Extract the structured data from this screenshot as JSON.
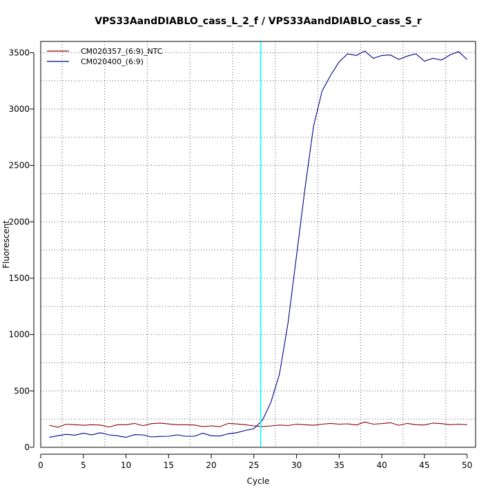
{
  "chart_data": {
    "type": "line",
    "title": "VPS33AandDIABLO_cass_L_2_f / VPS33AandDIABLO_cass_S_r",
    "xlabel": "Cycle",
    "ylabel": "Fluorescent",
    "xlim": [
      0,
      51
    ],
    "ylim": [
      0,
      3600
    ],
    "x_ticks": [
      0,
      5,
      10,
      15,
      20,
      25,
      30,
      35,
      40,
      45,
      50
    ],
    "y_ticks": [
      0,
      500,
      1000,
      1500,
      2000,
      2500,
      3000,
      3500
    ],
    "grid": true,
    "legend_position": "top-left",
    "threshold_cycle": 25.8,
    "threshold_color": "#00ffff",
    "baseline_color": "#8b0000",
    "x": [
      1,
      2,
      3,
      4,
      5,
      6,
      7,
      8,
      9,
      10,
      11,
      12,
      13,
      14,
      15,
      16,
      17,
      18,
      19,
      20,
      21,
      22,
      23,
      24,
      25,
      26,
      27,
      28,
      29,
      30,
      31,
      32,
      33,
      34,
      35,
      36,
      37,
      38,
      39,
      40,
      41,
      42,
      43,
      44,
      45,
      46,
      47,
      48,
      49,
      50
    ],
    "series": [
      {
        "name": "CM020357_(6:9)_NTC",
        "color": "#8b0000",
        "values": [
          195,
          178,
          205,
          200,
          195,
          200,
          197,
          180,
          200,
          200,
          212,
          192,
          210,
          215,
          207,
          200,
          200,
          198,
          183,
          190,
          183,
          212,
          207,
          200,
          190,
          183,
          190,
          197,
          193,
          205,
          200,
          195,
          205,
          212,
          205,
          208,
          198,
          225,
          205,
          210,
          218,
          195,
          212,
          200,
          198,
          215,
          210,
          200,
          205,
          200
        ]
      },
      {
        "name": "CM020400_(6:9)",
        "color": "#00008b",
        "values": [
          88,
          102,
          115,
          108,
          125,
          110,
          130,
          110,
          102,
          88,
          112,
          110,
          92,
          97,
          98,
          110,
          98,
          98,
          125,
          102,
          100,
          120,
          130,
          150,
          165,
          240,
          400,
          650,
          1100,
          1700,
          2300,
          2850,
          3160,
          3300,
          3420,
          3490,
          3475,
          3515,
          3450,
          3475,
          3480,
          3440,
          3470,
          3490,
          3425,
          3450,
          3435,
          3480,
          3510,
          3440
        ]
      }
    ]
  }
}
